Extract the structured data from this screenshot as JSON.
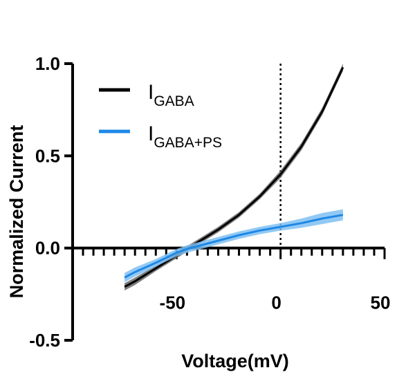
{
  "chart_data": {
    "type": "line",
    "xlabel": "Voltage(mV)",
    "ylabel": "Normalized Current",
    "xlim": [
      -90,
      50
    ],
    "ylim": [
      -0.5,
      1.0
    ],
    "x_ticks": [
      -50,
      0,
      50
    ],
    "y_ticks": [
      -0.5,
      0.0,
      0.5,
      1.0
    ],
    "x_tick_labels": [
      "-50",
      "0",
      "50"
    ],
    "y_tick_labels": [
      "-0.5",
      "0.0",
      "0.5",
      "1.0"
    ],
    "reference_line": {
      "x": 0,
      "style": "dotted"
    },
    "grid": false,
    "legend_position": "top-left",
    "series": [
      {
        "name": "I",
        "subscript": "GABA",
        "color": "#000000",
        "band_color": "#666666",
        "x": [
          -75,
          -70,
          -60,
          -50,
          -45,
          -40,
          -30,
          -20,
          -10,
          0,
          10,
          20,
          30
        ],
        "y": [
          -0.21,
          -0.18,
          -0.11,
          -0.04,
          -0.005,
          0.03,
          0.1,
          0.18,
          0.28,
          0.4,
          0.55,
          0.74,
          0.98
        ],
        "error": [
          0.02,
          0.02,
          0.015,
          0.015,
          0.015,
          0.015,
          0.015,
          0.015,
          0.015,
          0.02,
          0.02,
          0.02,
          0.02
        ]
      },
      {
        "name": "I",
        "subscript": "GABA+PS",
        "color": "#1e88e5",
        "band_color": "#7fbff2",
        "x": [
          -75,
          -70,
          -60,
          -50,
          -45,
          -40,
          -30,
          -20,
          -10,
          0,
          10,
          20,
          30
        ],
        "y": [
          -0.16,
          -0.13,
          -0.08,
          -0.025,
          -0.005,
          0.01,
          0.04,
          0.07,
          0.095,
          0.115,
          0.135,
          0.16,
          0.18
        ],
        "error": [
          0.025,
          0.025,
          0.02,
          0.02,
          0.02,
          0.02,
          0.02,
          0.02,
          0.02,
          0.02,
          0.025,
          0.03,
          0.03
        ]
      }
    ]
  }
}
